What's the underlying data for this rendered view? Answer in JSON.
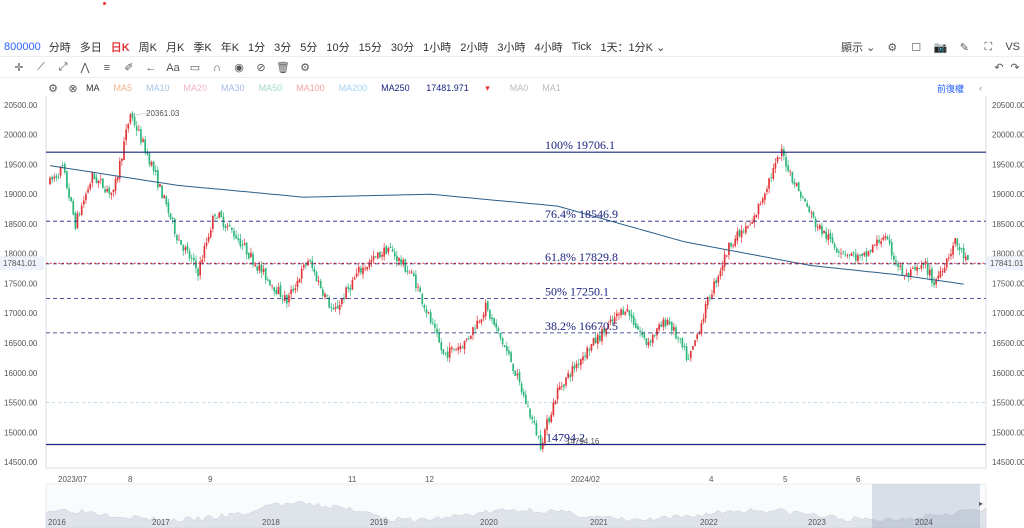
{
  "header": {
    "symbol_code": "800000",
    "timeframes": [
      "分時",
      "多日",
      "日K",
      "周K",
      "月K",
      "季K",
      "年K",
      "1分",
      "3分",
      "5分",
      "10分",
      "15分",
      "30分",
      "1小時",
      "2小時",
      "3小時",
      "4小時",
      "Tick",
      "1天：1分K"
    ],
    "active_timeframe": "日K",
    "display_label": "顯示",
    "truncated_label": "VS"
  },
  "indicator_bar": {
    "ma_label": "MA",
    "ma_items": [
      "MA5",
      "MA10",
      "MA20",
      "MA30",
      "MA50",
      "MA100",
      "MA200"
    ],
    "ma250_label": "MA250",
    "ma250_value": "17481.971",
    "extra_items": [
      "MA0",
      "MA1"
    ],
    "adjust_label": "前復權"
  },
  "colors": {
    "up": "#e2353a",
    "down": "#2db67c",
    "ma250": "#2c5f8a",
    "fib": "#1a237e",
    "accent": "#2962ff"
  },
  "chart_data": {
    "type": "candlestick",
    "ylim": [
      14400,
      20650
    ],
    "y_ticks": [
      "20500.00",
      "20000.00",
      "19500.00",
      "19000.00",
      "18500.00",
      "18000.00",
      "17500.00",
      "17000.00",
      "16500.00",
      "16000.00",
      "15500.00",
      "15000.00",
      "14500.00"
    ],
    "x_labels": [
      "2023/07",
      "8",
      "9",
      "11",
      "12",
      "2024/02",
      "4",
      "5",
      "6"
    ],
    "current_price": "17841.01",
    "high_marker": "20361.03",
    "low_marker": "14794.16",
    "fib_levels": [
      {
        "label": "100% 19706.1",
        "value": 19706.1
      },
      {
        "label": "76.4% 18546.9",
        "value": 18546.9
      },
      {
        "label": "61.8% 17829.8",
        "value": 17829.8
      },
      {
        "label": "50% 17250.1",
        "value": 17250.1
      },
      {
        "label": "38.2% 16670.5",
        "value": 16670.5
      },
      {
        "label": "14794.2",
        "value": 14794.2
      }
    ],
    "navigator_labels": [
      "2016",
      "2017",
      "2018",
      "2019",
      "2020",
      "2021",
      "2022",
      "2023",
      "2024"
    ],
    "anchors": [
      [
        0,
        19200
      ],
      [
        6,
        19450
      ],
      [
        12,
        18500
      ],
      [
        20,
        19300
      ],
      [
        30,
        19000
      ],
      [
        38,
        20361
      ],
      [
        48,
        19500
      ],
      [
        60,
        18300
      ],
      [
        70,
        17700
      ],
      [
        78,
        18700
      ],
      [
        88,
        18300
      ],
      [
        100,
        17700
      ],
      [
        112,
        17200
      ],
      [
        122,
        17900
      ],
      [
        134,
        17000
      ],
      [
        146,
        17700
      ],
      [
        160,
        18100
      ],
      [
        172,
        17600
      ],
      [
        186,
        16300
      ],
      [
        196,
        16500
      ],
      [
        206,
        17100
      ],
      [
        218,
        16200
      ],
      [
        232,
        14800
      ],
      [
        240,
        15700
      ],
      [
        252,
        16300
      ],
      [
        262,
        16700
      ],
      [
        272,
        17100
      ],
      [
        282,
        16500
      ],
      [
        292,
        16900
      ],
      [
        302,
        16200
      ],
      [
        312,
        17300
      ],
      [
        322,
        18200
      ],
      [
        332,
        18500
      ],
      [
        340,
        19250
      ],
      [
        346,
        19700
      ],
      [
        352,
        19200
      ],
      [
        362,
        18500
      ],
      [
        372,
        18100
      ],
      [
        384,
        17900
      ],
      [
        394,
        18300
      ],
      [
        404,
        17600
      ],
      [
        414,
        17800
      ],
      [
        418,
        17500
      ],
      [
        428,
        18200
      ],
      [
        434,
        17841
      ]
    ],
    "ma250_path": [
      [
        0,
        19480
      ],
      [
        60,
        19150
      ],
      [
        120,
        18950
      ],
      [
        180,
        19000
      ],
      [
        240,
        18800
      ],
      [
        300,
        18200
      ],
      [
        360,
        17800
      ],
      [
        400,
        17650
      ],
      [
        434,
        17480
      ]
    ]
  }
}
